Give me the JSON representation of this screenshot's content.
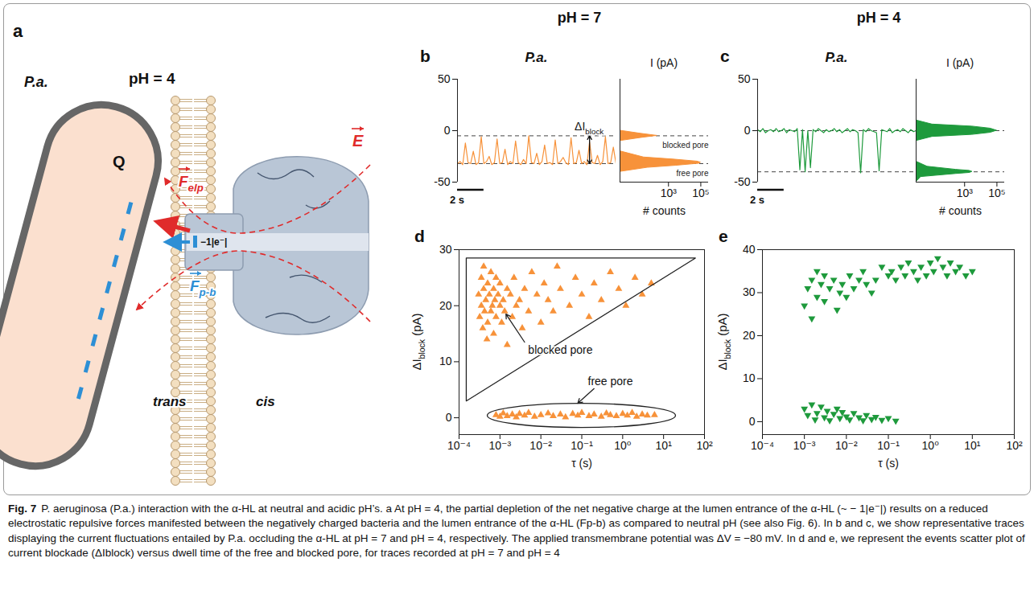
{
  "figure": {
    "column_heads": [
      "pH = 7",
      "pH = 4"
    ]
  },
  "caption": {
    "label": "Fig. 7",
    "text": "P. aeruginosa (P.a.) interaction with the α-HL at neutral and acidic pH’s. a At pH = 4, the partial depletion of the net negative charge at the lumen entrance of the α-HL (~ − 1|e⁻|) results on a reduced electrostatic repulsive forces manifested between the negatively charged bacteria and the lumen entrance of the α-HL (Fp-b) as compared to neutral pH (see also Fig. 6). In b and c, we show representative traces displaying the current fluctuations entailed by P.a. occluding the α-HL at pH = 7 and pH = 4, respectively. The applied transmembrane potential was ΔV = −80 mV. In d and e, we represent the events scatter plot of current blockade (ΔIblock) versus dwell time of the free and blocked pore, for traces recorded at pH = 7 and pH = 4"
  },
  "diagram": {
    "letter": "a",
    "title": "pH = 4",
    "bacterium": "P.a.",
    "charge": "Q",
    "force_elp": {
      "main": "F",
      "sub": "elp"
    },
    "force_pb": {
      "main": "F",
      "sub": "p-b"
    },
    "field": "E",
    "pore_charge": "−1|e⁻|",
    "side_left": "trans",
    "side_right": "cis"
  },
  "chart_data": [
    {
      "panel": "b",
      "type": "line",
      "title": "P.a.",
      "color": "#f7923a",
      "x": [
        0,
        0.2,
        0.4,
        0.6,
        0.8,
        1,
        1.2,
        1.4,
        1.6,
        1.8,
        2,
        2.2,
        2.4,
        2.6,
        2.8,
        3,
        3.2,
        3.4,
        3.6,
        3.8,
        4,
        4.2,
        4.4,
        4.6,
        4.8,
        5,
        5.2,
        5.4,
        5.6,
        5.8,
        6,
        6.2,
        6.4,
        6.6,
        6.8,
        7,
        7.2,
        7.4,
        7.6,
        7.8,
        8,
        8.2,
        8.4,
        8.6,
        8.8,
        9,
        9.2,
        9.4,
        9.6,
        9.8,
        10,
        10.2,
        10.4,
        10.6,
        10.8,
        11,
        11.2,
        11.4,
        11.6,
        11.8,
        12
      ],
      "values": [
        -32,
        -30,
        -33,
        -12,
        -31,
        -32,
        -20,
        -33,
        -31,
        -6,
        -32,
        -30,
        -25,
        -33,
        -31,
        -8,
        -32,
        -31,
        -18,
        -33,
        -30,
        -32,
        -10,
        -31,
        -33,
        -28,
        -32,
        -5,
        -31,
        -32,
        -22,
        -33,
        -30,
        -14,
        -32,
        -31,
        -33,
        -9,
        -32,
        -30,
        -26,
        -31,
        -33,
        -7,
        -32,
        -31,
        -19,
        -32,
        -30,
        -33,
        -11,
        -31,
        -32,
        -24,
        -33,
        -30,
        -6,
        -32,
        -31,
        -16,
        -32
      ],
      "xlim": [
        0,
        12
      ],
      "ylim": [
        -50,
        50
      ],
      "yticks": [
        -50,
        0,
        50
      ],
      "tick_labels": "y",
      "scale_bar": {
        "value": 2,
        "label": "2 s"
      },
      "reference_lines": [
        -5,
        -32
      ],
      "annotation": {
        "text": {
          "main": "ΔI",
          "sub": "block"
        },
        "x": 10,
        "y1": -5,
        "y2": -32
      }
    },
    {
      "type": "area",
      "orientation": "horizontal",
      "color": "#f7923a",
      "log": "x",
      "y": [
        -50,
        -40,
        -36,
        -34,
        -32,
        -31,
        -30,
        -28,
        -26,
        -20,
        -10,
        -7,
        -5,
        -3,
        0,
        10,
        20
      ],
      "values": [
        1,
        1,
        50,
        3000,
        80000,
        100000,
        60000,
        2000,
        30,
        1,
        1,
        20,
        200,
        20,
        1,
        1,
        1
      ],
      "xlim": [
        1,
        300000
      ],
      "xticks": [
        {
          "value": 1000,
          "label": "10³"
        },
        {
          "value": 100000,
          "label": "10⁵"
        }
      ],
      "ylim": [
        -50,
        50
      ],
      "xlabel": "# counts",
      "ylabel": "I (pA)",
      "tick_labels": "x",
      "reference_lines": [
        {
          "value": -5,
          "label": "blocked pore"
        },
        {
          "value": -32,
          "label": "free pore"
        }
      ]
    },
    {
      "panel": "c",
      "type": "line",
      "title": "P.a.",
      "color": "#1e9a3c",
      "x": [
        0,
        0.2,
        0.4,
        0.6,
        0.8,
        1,
        1.2,
        1.4,
        1.6,
        1.8,
        2,
        2.2,
        2.4,
        2.6,
        2.8,
        3,
        3.2,
        3.4,
        3.6,
        3.8,
        4,
        4.2,
        4.4,
        4.6,
        4.8,
        5,
        5.2,
        5.4,
        5.6,
        5.8,
        6,
        6.2,
        6.4,
        6.6,
        6.8,
        7,
        7.2,
        7.4,
        7.6,
        7.8,
        8,
        8.2,
        8.4,
        8.6,
        8.8,
        9,
        9.2,
        9.4,
        9.6,
        9.8,
        10,
        10.2,
        10.4,
        10.6,
        10.8,
        11,
        11.2,
        11.4,
        11.6,
        11.8,
        12
      ],
      "values": [
        1,
        -1,
        2,
        -2,
        0,
        1,
        -1,
        2,
        -1,
        0,
        2,
        -2,
        1,
        0,
        -1,
        2,
        -38,
        1,
        -40,
        0,
        -36,
        1,
        -1,
        2,
        0,
        -2,
        1,
        -1,
        0,
        2,
        -1,
        1,
        -2,
        0,
        2,
        -1,
        1,
        0,
        -2,
        -41,
        1,
        -1,
        2,
        0,
        -1,
        -2,
        -39,
        1,
        0,
        -1,
        2,
        -2,
        0,
        1,
        -1,
        2,
        0,
        -2,
        1,
        -1,
        0
      ],
      "xlim": [
        0,
        12
      ],
      "ylim": [
        -50,
        50
      ],
      "yticks": [
        -50,
        0,
        50
      ],
      "tick_labels": "y",
      "scale_bar": {
        "value": 2,
        "label": "2 s"
      },
      "reference_lines": [
        0,
        -40
      ]
    },
    {
      "type": "area",
      "orientation": "horizontal",
      "color": "#1e9a3c",
      "log": "x",
      "y": [
        -50,
        -45,
        -42,
        -41,
        -40,
        -39,
        -38,
        -35,
        -30,
        -20,
        -10,
        -6,
        -4,
        -2,
        0,
        2,
        4,
        6,
        10,
        20
      ],
      "values": [
        1,
        2,
        300,
        2000,
        3000,
        2000,
        300,
        5,
        1,
        1,
        1,
        10,
        3000,
        40000,
        100000,
        40000,
        3000,
        10,
        1,
        1
      ],
      "xlim": [
        1,
        300000
      ],
      "xticks": [
        {
          "value": 1000,
          "label": "10³"
        },
        {
          "value": 100000,
          "label": "10⁵"
        }
      ],
      "ylim": [
        -50,
        50
      ],
      "xlabel": "# counts",
      "ylabel": "I (pA)",
      "tick_labels": "x",
      "reference_lines": [
        0,
        -40
      ]
    },
    {
      "panel": "d",
      "type": "scatter",
      "log": "x",
      "xlim": [
        0.0001,
        100
      ],
      "xticks": [
        {
          "value": 0.0001,
          "label": "10⁻⁴"
        },
        {
          "value": 0.001,
          "label": "10⁻³"
        },
        {
          "value": 0.01,
          "label": "10⁻²"
        },
        {
          "value": 0.1,
          "label": "10⁻¹"
        },
        {
          "value": 1,
          "label": "10⁰"
        },
        {
          "value": 10,
          "label": "10¹"
        },
        {
          "value": 100,
          "label": "10²"
        }
      ],
      "ylim": [
        -3,
        30
      ],
      "yticks": [
        0,
        10,
        20,
        30
      ],
      "xlabel": "τ (s)",
      "ylabel": {
        "main": "ΔI",
        "sub": "block",
        "tail": " (pA)"
      },
      "series": [
        {
          "color": "#f7923a",
          "marker": "triangle-up",
          "x": [
            0.0003,
            0.00032,
            0.00035,
            0.00035,
            0.00038,
            0.0004,
            0.0004,
            0.00042,
            0.00045,
            0.00048,
            0.0005,
            0.0005,
            0.00055,
            0.0006,
            0.0006,
            0.00065,
            0.0007,
            0.0007,
            0.00075,
            0.0008,
            0.0008,
            0.0009,
            0.001,
            0.001,
            0.0011,
            0.0012,
            0.0013,
            0.0015,
            0.0015,
            0.0018,
            0.002,
            0.0022,
            0.0025,
            0.003,
            0.0035,
            0.004,
            0.005,
            0.006,
            0.008,
            0.01,
            0.012,
            0.015,
            0.02,
            0.025,
            0.03,
            0.05,
            0.07,
            0.1,
            0.15,
            0.2,
            0.3,
            0.5,
            0.8,
            1.2,
            2,
            3,
            5
          ],
          "values": [
            22,
            18,
            25,
            20,
            16,
            23,
            27,
            19,
            21,
            14,
            24,
            17,
            22,
            26,
            19,
            20,
            23,
            15,
            21,
            18,
            25,
            22,
            20,
            24,
            17,
            21,
            19,
            23,
            13,
            22,
            18,
            25,
            20,
            21,
            16,
            23,
            19,
            26,
            22,
            17,
            24,
            21,
            19,
            27,
            23,
            20,
            25,
            22,
            18,
            24,
            21,
            26,
            23,
            20,
            25,
            22,
            24
          ]
        },
        {
          "color": "#f7923a",
          "marker": "triangle-up",
          "x": [
            0.0008,
            0.001,
            0.0012,
            0.0015,
            0.002,
            0.0025,
            0.003,
            0.004,
            0.005,
            0.007,
            0.01,
            0.015,
            0.02,
            0.03,
            0.04,
            0.06,
            0.08,
            0.1,
            0.15,
            0.2,
            0.3,
            0.4,
            0.5,
            0.7,
            1,
            1.3,
            1.7,
            2.2,
            3,
            4,
            6
          ],
          "values": [
            0.5,
            0.2,
            0.8,
            0.3,
            0.6,
            0.1,
            0.7,
            0.4,
            0.9,
            0.2,
            0.5,
            0.8,
            0.3,
            0.6,
            0.1,
            0.7,
            0.4,
            0.9,
            0.3,
            0.6,
            0.2,
            0.8,
            0.5,
            0.3,
            0.7,
            0.4,
            0.9,
            0.2,
            0.6,
            0.4,
            0.5
          ]
        }
      ],
      "annotations": [
        {
          "text": "blocked pore",
          "at": [
            0.03,
            12
          ],
          "polygon": [
            [
              0.00015,
              28.5
            ],
            [
              60,
              28.5
            ],
            [
              0.00015,
              3
            ]
          ],
          "arrow": [
            [
              0.004,
              13.5
            ],
            [
              0.0014,
              18.5
            ]
          ]
        },
        {
          "text": "free pore",
          "at": [
            0.5,
            6.5
          ],
          "ellipse": {
            "x": [
              0.0005,
              20
            ],
            "y": [
              -1.8,
              2.5
            ]
          },
          "arrow": [
            [
              0.2,
              5.2
            ],
            [
              0.08,
              2.6
            ]
          ]
        }
      ]
    },
    {
      "panel": "e",
      "type": "scatter",
      "log": "x",
      "xlim": [
        0.0001,
        100
      ],
      "xticks": [
        {
          "value": 0.0001,
          "label": "10⁻⁴"
        },
        {
          "value": 0.001,
          "label": "10⁻³"
        },
        {
          "value": 0.01,
          "label": "10⁻²"
        },
        {
          "value": 0.1,
          "label": "10⁻¹"
        },
        {
          "value": 1,
          "label": "10⁰"
        },
        {
          "value": 10,
          "label": "10¹"
        },
        {
          "value": 100,
          "label": "10²"
        }
      ],
      "ylim": [
        -3,
        40
      ],
      "yticks": [
        0,
        10,
        20,
        30,
        40
      ],
      "xlabel": "τ (s)",
      "ylabel": {
        "main": "ΔI",
        "sub": "block",
        "tail": " (pA)"
      },
      "series": [
        {
          "color": "#1e9a3c",
          "marker": "triangle-down",
          "x": [
            0.001,
            0.0012,
            0.0015,
            0.0015,
            0.002,
            0.002,
            0.0025,
            0.003,
            0.003,
            0.004,
            0.005,
            0.006,
            0.007,
            0.008,
            0.01,
            0.012,
            0.015,
            0.02,
            0.025,
            0.03,
            0.04,
            0.05,
            0.07,
            0.1,
            0.12,
            0.15,
            0.2,
            0.25,
            0.3,
            0.4,
            0.5,
            0.6,
            0.8,
            1,
            1.2,
            1.5,
            2,
            2.5,
            3,
            4,
            5,
            7,
            10
          ],
          "values": [
            27,
            31,
            24,
            33,
            29,
            35,
            32,
            28,
            34,
            31,
            33,
            26,
            30,
            32,
            29,
            34,
            31,
            33,
            35,
            32,
            30,
            33,
            36,
            34,
            35,
            33,
            36,
            34,
            37,
            35,
            33,
            36,
            34,
            37,
            35,
            38,
            36,
            34,
            37,
            35,
            36,
            34,
            35
          ]
        },
        {
          "color": "#1e9a3c",
          "marker": "triangle-down",
          "x": [
            0.001,
            0.0012,
            0.0015,
            0.0018,
            0.002,
            0.0025,
            0.003,
            0.0035,
            0.004,
            0.005,
            0.006,
            0.007,
            0.008,
            0.01,
            0.012,
            0.015,
            0.02,
            0.025,
            0.03,
            0.04,
            0.05,
            0.07,
            0.1,
            0.15
          ],
          "values": [
            3,
            1.5,
            4,
            0.5,
            2,
            3.5,
            1,
            2.5,
            0.3,
            1.8,
            3,
            0.8,
            2.2,
            1.2,
            0.5,
            2,
            1,
            0.3,
            1.5,
            0.6,
            1.1,
            0.4,
            0.8,
            0.2
          ]
        }
      ]
    }
  ]
}
